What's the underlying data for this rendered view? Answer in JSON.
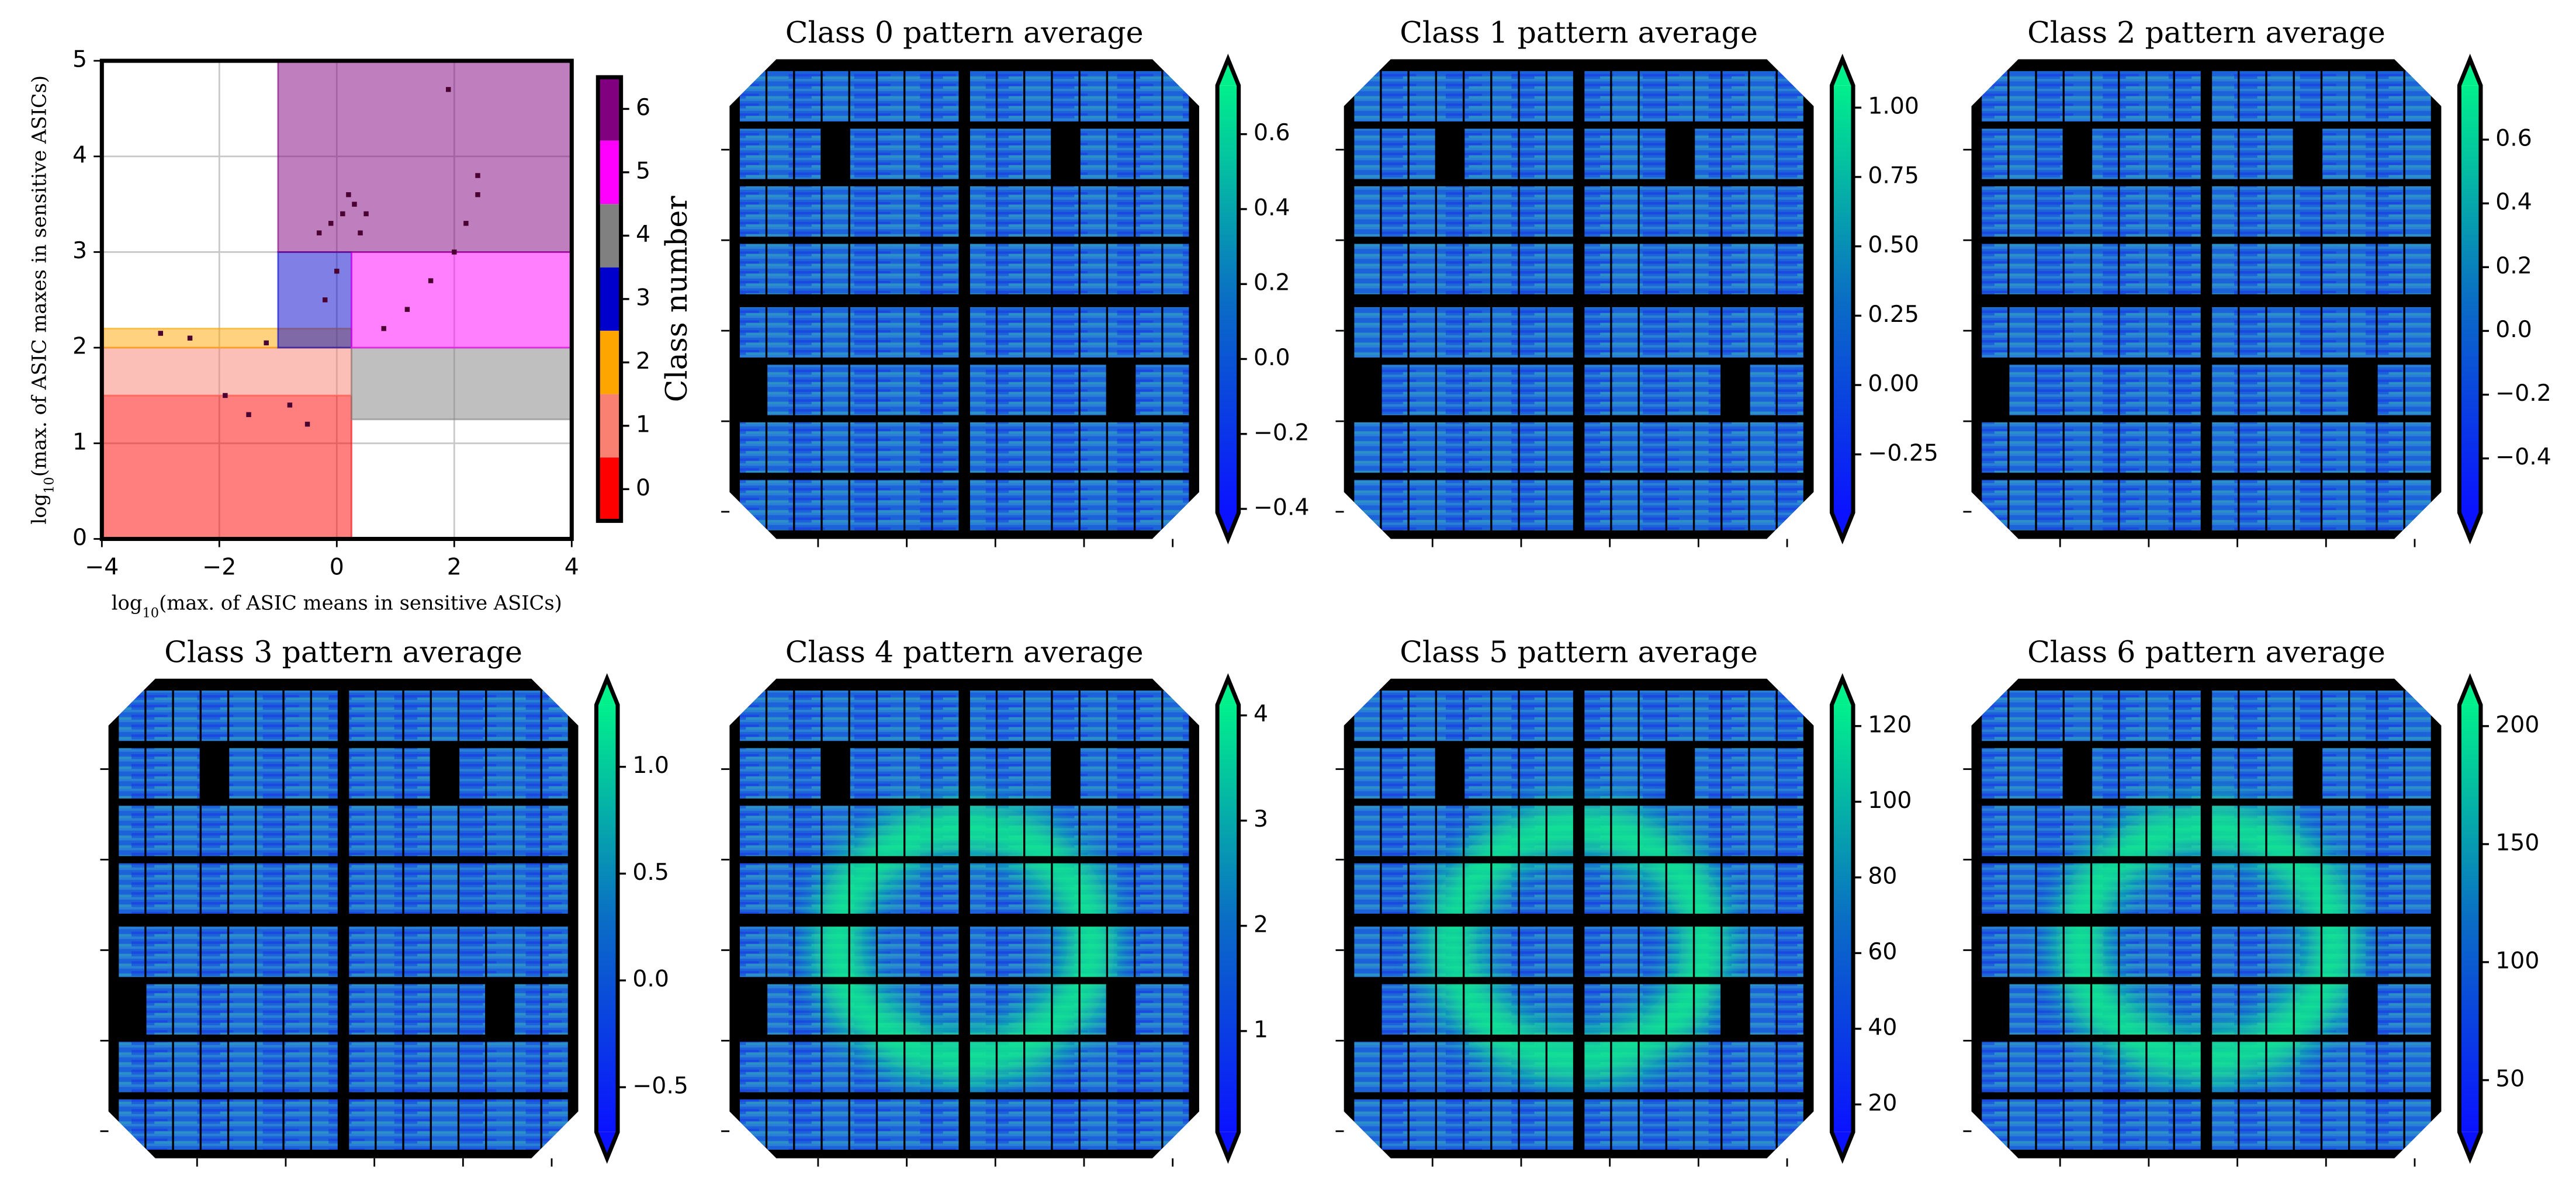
{
  "chart_data": [
    {
      "type": "regions",
      "xlabel": [
        "log",
        "10",
        "(max. of ASIC means in sensitive ASICs)"
      ],
      "ylabel": [
        "log",
        "10",
        "(max. of ASIC maxes in sensitive ASICs)"
      ],
      "xlim": [
        -4,
        4
      ],
      "ylim": [
        0,
        5
      ],
      "xticks": [
        {
          "value": -4,
          "label": "−4"
        },
        {
          "value": -2,
          "label": "−2"
        },
        0,
        2,
        4
      ],
      "yticks": [
        0,
        1,
        2,
        3,
        4,
        5
      ],
      "grid": true,
      "regions": [
        {
          "x": [
            -4,
            0.25
          ],
          "y": [
            0,
            1.5
          ]
        },
        {
          "x": [
            -4,
            0.25
          ],
          "y": [
            1.5,
            2.0
          ]
        },
        {
          "x": [
            -4,
            0.25
          ],
          "y": [
            2.0,
            2.2
          ]
        },
        {
          "x": [
            -1,
            0.25
          ],
          "y": [
            2.0,
            3.0
          ]
        },
        {
          "x": [
            0.25,
            4
          ],
          "y": [
            1.25,
            2.0
          ]
        },
        {
          "x": [
            0.25,
            4
          ],
          "y": [
            2.0,
            3.0
          ]
        },
        {
          "x": [
            -1,
            4
          ],
          "y": [
            3.0,
            5.0
          ]
        }
      ],
      "points": {
        "x": [
          0.1,
          0.3,
          -0.1,
          0.4,
          0.2,
          0.5,
          -0.3,
          0.0,
          -1.5,
          -0.8,
          -0.5,
          -2.5,
          -1.2,
          -0.2,
          0.8,
          1.2,
          1.6,
          2.0,
          2.2,
          2.4,
          2.4,
          1.9,
          -3.0,
          -1.9
        ],
        "y": [
          3.4,
          3.5,
          3.3,
          3.2,
          3.6,
          3.4,
          3.2,
          2.8,
          1.3,
          1.4,
          1.2,
          2.1,
          2.05,
          2.5,
          2.2,
          2.4,
          2.7,
          3.0,
          3.3,
          3.6,
          3.8,
          4.7,
          2.15,
          1.5
        ]
      },
      "colorbar": {
        "label": "Class number",
        "ticks": [
          0,
          1,
          2,
          3,
          4,
          5,
          6
        ],
        "clim": [
          -0.5,
          6.5
        ],
        "colors": [
          "#ff0000",
          "#fa8072",
          "#ffa500",
          "#0000cd",
          "#808080",
          "#ff00ff",
          "#800080"
        ]
      }
    },
    {
      "type": "image",
      "title": "Class 0 pattern average",
      "ring": false,
      "colorbar": {
        "clim": [
          -0.41,
          0.73
        ],
        "ticks": [
          {
            "value": -0.4,
            "label": "−0.4"
          },
          {
            "value": -0.2,
            "label": "−0.2"
          },
          {
            "value": 0,
            "label": "0.0"
          },
          0.2,
          0.4,
          0.6
        ]
      }
    },
    {
      "type": "image",
      "title": "Class 1 pattern average",
      "ring": false,
      "colorbar": {
        "clim": [
          -0.46,
          1.08
        ],
        "ticks": [
          {
            "value": -0.25,
            "label": "−0.25"
          },
          {
            "value": 0,
            "label": "0.00"
          },
          0.25,
          {
            "value": 0.5,
            "label": "0.50"
          },
          0.75,
          {
            "value": 1,
            "label": "1.00"
          }
        ]
      }
    },
    {
      "type": "image",
      "title": "Class 2 pattern average",
      "ring": false,
      "colorbar": {
        "clim": [
          -0.57,
          0.77
        ],
        "ticks": [
          {
            "value": -0.4,
            "label": "−0.4"
          },
          {
            "value": -0.2,
            "label": "−0.2"
          },
          {
            "value": 0,
            "label": "0.0"
          },
          0.2,
          0.4,
          0.6
        ]
      }
    },
    {
      "type": "image",
      "title": "Class 3 pattern average",
      "ring": false,
      "colorbar": {
        "clim": [
          -0.71,
          1.29
        ],
        "ticks": [
          {
            "value": -0.5,
            "label": "−0.5"
          },
          {
            "value": 0,
            "label": "0.0"
          },
          0.5,
          {
            "value": 1,
            "label": "1.0"
          }
        ]
      }
    },
    {
      "type": "image",
      "title": "Class 4 pattern average",
      "ring": true,
      "colorbar": {
        "clim": [
          0.04,
          4.1
        ],
        "ticks": [
          1,
          2,
          3,
          4
        ]
      }
    },
    {
      "type": "image",
      "title": "Class 5 pattern average",
      "ring": true,
      "colorbar": {
        "clim": [
          12.7,
          125.6
        ],
        "ticks": [
          20,
          40,
          60,
          80,
          100,
          120
        ]
      }
    },
    {
      "type": "image",
      "title": "Class 6 pattern average",
      "ring": true,
      "colorbar": {
        "clim": [
          28,
          209
        ],
        "ticks": [
          50,
          100,
          150,
          200
        ]
      }
    }
  ]
}
